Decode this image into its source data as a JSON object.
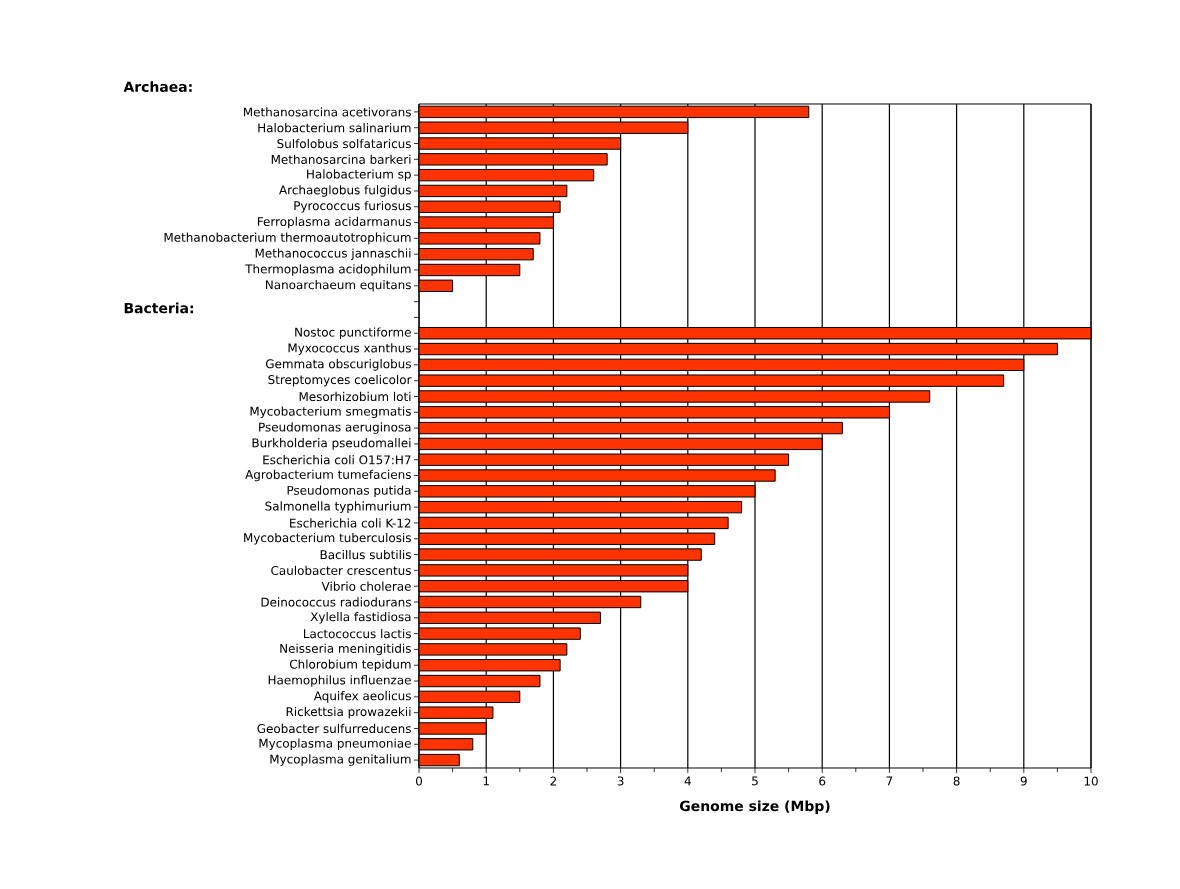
{
  "chart_data": {
    "type": "bar",
    "orientation": "horizontal",
    "xlabel": "Genome size (Mbp)",
    "annotations": [
      "Archaea:",
      "Bacteria:"
    ],
    "categories": [
      "Methanosarcina acetivorans",
      "Halobacterium salinarium",
      "Sulfolobus solfataricus",
      "Methanosarcina barkeri",
      "Halobacterium sp",
      "Archaeglobus fulgidus",
      "Pyrococcus furiosus",
      "Ferroplasma acidarmanus",
      "Methanobacterium thermoautotrophicum",
      "Methanococcus jannaschii",
      "Thermoplasma acidophilum",
      "Nanoarchaeum equitans",
      null,
      null,
      "Nostoc punctiforme",
      "Myxococcus xanthus",
      "Gemmata obscuriglobus",
      "Streptomyces coelicolor",
      "Mesorhizobium loti",
      "Mycobacterium smegmatis",
      "Pseudomonas aeruginosa",
      "Burkholderia pseudomallei",
      "Escherichia coli O157:H7",
      "Agrobacterium tumefaciens",
      "Pseudomonas putida",
      "Salmonella typhimurium",
      "Escherichia coli K-12",
      "Mycobacterium tuberculosis",
      "Bacillus subtilis",
      "Caulobacter crescentus",
      "Vibrio cholerae",
      "Deinococcus radiodurans",
      "Xylella fastidiosa",
      "Lactococcus lactis",
      "Neisseria meningitidis",
      "Chlorobium tepidum",
      "Haemophilus influenzae",
      "Aquifex aeolicus",
      "Rickettsia prowazekii",
      "Geobacter sulfurreducens",
      "Mycoplasma pneumoniae",
      "Mycoplasma genitalium"
    ],
    "values": [
      5.8,
      4.0,
      3.0,
      2.8,
      2.6,
      2.2,
      2.1,
      2.0,
      1.8,
      1.7,
      1.5,
      0.5,
      null,
      null,
      10.0,
      9.5,
      9.0,
      8.7,
      7.6,
      7.0,
      6.3,
      6.0,
      5.5,
      5.3,
      5.0,
      4.8,
      4.6,
      4.4,
      4.2,
      4.0,
      4.0,
      3.3,
      2.7,
      2.4,
      2.2,
      2.1,
      1.8,
      1.5,
      1.1,
      1.0,
      0.8,
      0.6
    ],
    "color": "#ff3300",
    "xlim": [
      0,
      10
    ],
    "xticks": [
      0,
      {
        "value": 0.5,
        "label": null
      },
      1,
      {
        "value": 1.5,
        "label": null
      },
      2,
      {
        "value": 2.5,
        "label": null
      },
      3,
      {
        "value": 3.5,
        "label": null
      },
      4,
      {
        "value": 4.5,
        "label": null
      },
      5,
      {
        "value": 5.5,
        "label": null
      },
      6,
      {
        "value": 6.5,
        "label": null
      },
      7,
      {
        "value": 7.5,
        "label": null
      },
      8,
      {
        "value": 8.5,
        "label": null
      },
      9,
      {
        "value": 9.5,
        "label": null
      },
      10
    ],
    "grid": "x"
  }
}
